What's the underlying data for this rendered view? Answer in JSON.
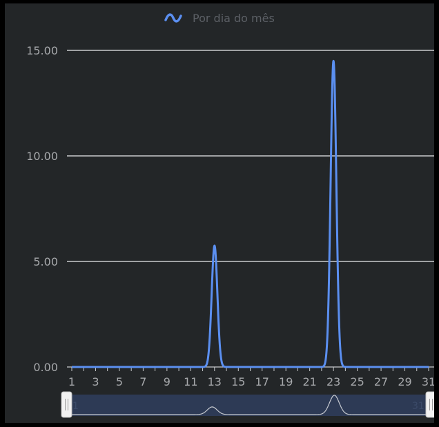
{
  "legend": {
    "icon": "wave-icon",
    "label": "Por dia do mês"
  },
  "colors": {
    "background": "#232628",
    "series": "#5b8ff0",
    "grid": "#c9cbcd",
    "text": "#a7a9ac"
  },
  "chart_data": {
    "type": "line",
    "smooth": true,
    "x": [
      1,
      2,
      3,
      4,
      5,
      6,
      7,
      8,
      9,
      10,
      11,
      12,
      13,
      14,
      15,
      16,
      17,
      18,
      19,
      20,
      21,
      22,
      23,
      24,
      25,
      26,
      27,
      28,
      29,
      30,
      31
    ],
    "series": [
      {
        "name": "Por dia do mês",
        "values": [
          0,
          0,
          0,
          0,
          0,
          0,
          0,
          0,
          0,
          0,
          0,
          0,
          5.75,
          0,
          0,
          0,
          0,
          0,
          0,
          0,
          0,
          0,
          14.5,
          0,
          0,
          0,
          0,
          0,
          0,
          0,
          0
        ]
      }
    ],
    "ylim": [
      0,
      15
    ],
    "yticks": [
      "0.00",
      "5.00",
      "10.00",
      "15.00"
    ],
    "xticks": [
      "1",
      "3",
      "5",
      "7",
      "9",
      "11",
      "13",
      "15",
      "17",
      "19",
      "21",
      "23",
      "25",
      "27",
      "29",
      "31"
    ],
    "grid": true,
    "legend_position": "top-center",
    "range_slider": {
      "start_label": "1",
      "end_label": "31"
    }
  }
}
